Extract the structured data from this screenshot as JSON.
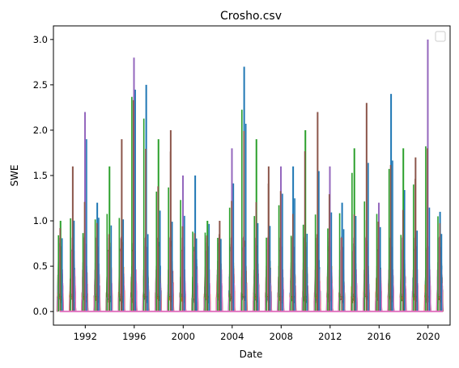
{
  "chart_data": {
    "type": "line",
    "title": "Crosho.csv",
    "xlabel": "Date",
    "ylabel": "SWE",
    "xlim": [
      1989.4,
      2021.8
    ],
    "ylim": [
      -0.15,
      3.15
    ],
    "x_ticks": [
      "1992",
      "1996",
      "2000",
      "2004",
      "2008",
      "2012",
      "2016",
      "2020"
    ],
    "y_ticks": [
      "0.0",
      "0.5",
      "1.0",
      "1.5",
      "2.0",
      "2.5",
      "3.0"
    ],
    "grid": false,
    "legend": {
      "position": "top-right",
      "entries": []
    },
    "series_colors": [
      "#1f77b4",
      "#ff7f0e",
      "#2ca02c",
      "#d62728",
      "#9467bd",
      "#8c564b",
      "#e377c2"
    ],
    "annual_peaks": [
      {
        "year": 1990,
        "value": 1.0
      },
      {
        "year": 1991,
        "value": 1.6
      },
      {
        "year": 1992,
        "value": 2.2
      },
      {
        "year": 1993,
        "value": 1.2
      },
      {
        "year": 1994,
        "value": 1.6
      },
      {
        "year": 1995,
        "value": 1.9
      },
      {
        "year": 1996,
        "value": 2.8
      },
      {
        "year": 1997,
        "value": 2.5
      },
      {
        "year": 1998,
        "value": 1.9
      },
      {
        "year": 1999,
        "value": 2.0
      },
      {
        "year": 2000,
        "value": 1.5
      },
      {
        "year": 2001,
        "value": 1.5
      },
      {
        "year": 2002,
        "value": 1.0
      },
      {
        "year": 2003,
        "value": 1.0
      },
      {
        "year": 2004,
        "value": 1.8
      },
      {
        "year": 2005,
        "value": 2.7
      },
      {
        "year": 2006,
        "value": 1.9
      },
      {
        "year": 2007,
        "value": 1.6
      },
      {
        "year": 2008,
        "value": 1.6
      },
      {
        "year": 2009,
        "value": 1.6
      },
      {
        "year": 2010,
        "value": 2.0
      },
      {
        "year": 2011,
        "value": 2.2
      },
      {
        "year": 2012,
        "value": 1.6
      },
      {
        "year": 2013,
        "value": 1.2
      },
      {
        "year": 2014,
        "value": 1.8
      },
      {
        "year": 2015,
        "value": 2.3
      },
      {
        "year": 2016,
        "value": 1.2
      },
      {
        "year": 2017,
        "value": 2.4
      },
      {
        "year": 2018,
        "value": 1.8
      },
      {
        "year": 2019,
        "value": 1.7
      },
      {
        "year": 2020,
        "value": 3.0
      },
      {
        "year": 2021,
        "value": 1.1
      }
    ]
  }
}
